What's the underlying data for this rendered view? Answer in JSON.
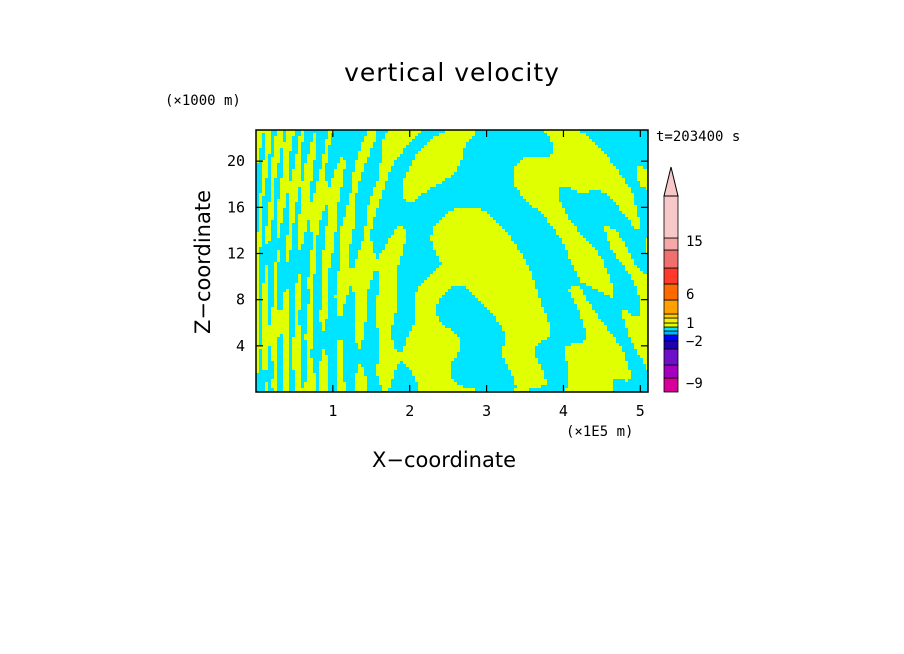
{
  "chart_data": {
    "type": "heatmap",
    "title": "vertical velocity",
    "time_label": "t=203400 s",
    "xlabel": "X−coordinate",
    "ylabel": "Z−coordinate",
    "x_unit": "(×1E5 m)",
    "y_unit": "(×1000 m)",
    "xlim": [
      0,
      5.1
    ],
    "ylim": [
      0,
      22.7
    ],
    "x_ticks": [
      "1",
      "2",
      "3",
      "4",
      "5"
    ],
    "y_ticks": [
      "4",
      "8",
      "12",
      "16",
      "20"
    ],
    "field_colors": {
      "positive": "#e0ff00",
      "negative": "#00e5ff"
    },
    "colorbar": {
      "labels": [
        "15",
        "6",
        "1",
        "−2",
        "−9"
      ],
      "label_values": [
        15,
        6,
        1,
        -2,
        -9
      ],
      "colors": [
        "#d7009a",
        "#a300c0",
        "#6e10c8",
        "#1f00b0",
        "#0000ff",
        "#00b5ff",
        "#00e5ff",
        "#e0ff00",
        "#f5f000",
        "#ffd000",
        "#ff9f00",
        "#ff6a00",
        "#ff3a2a",
        "#f07070",
        "#f5a8a8",
        "#f8c8c8"
      ]
    }
  }
}
